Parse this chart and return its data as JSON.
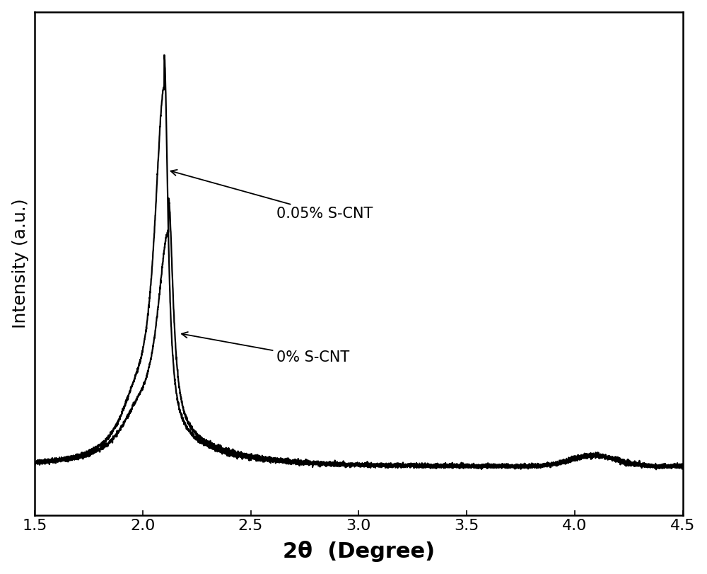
{
  "xlabel": "2θ  (Degree)",
  "ylabel": "Intensity (a.u.)",
  "xlim": [
    1.5,
    4.5
  ],
  "xlabel_fontsize": 22,
  "ylabel_fontsize": 18,
  "tick_fontsize": 16,
  "line_color": "#000000",
  "line_width": 1.6,
  "background_color": "#ffffff",
  "annotation_0": "0.05% S-CNT",
  "annotation_1": "0% S-CNT",
  "xticks": [
    1.5,
    2.0,
    2.5,
    3.0,
    3.5,
    4.0,
    4.5
  ],
  "fig_width": 10.0,
  "fig_height": 8.11
}
